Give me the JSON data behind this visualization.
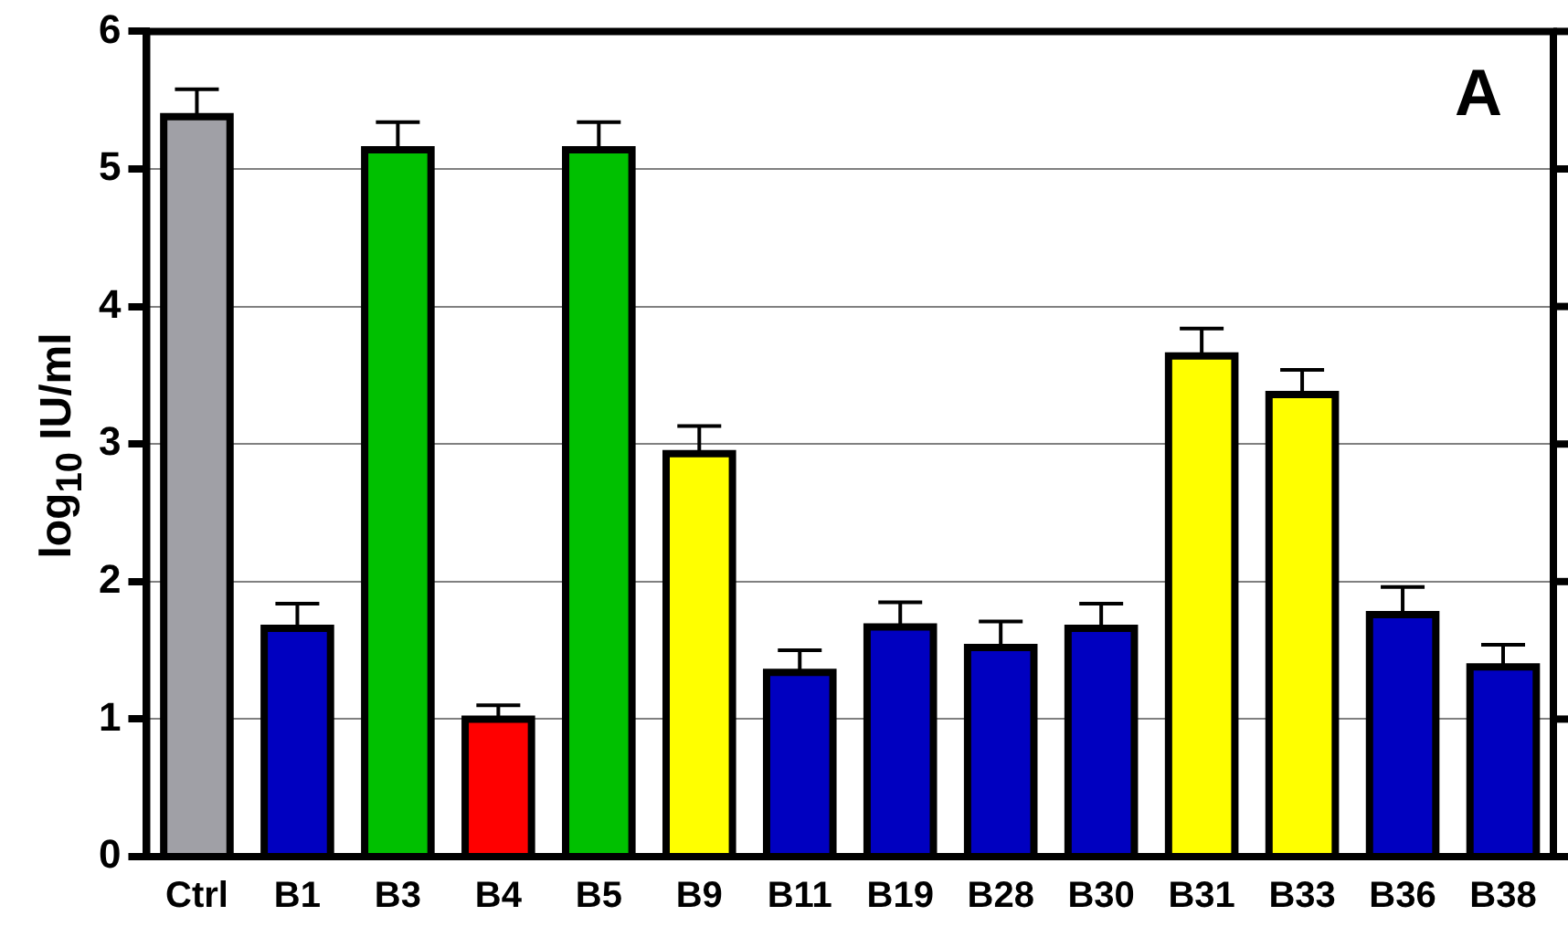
{
  "chart_data": {
    "type": "bar",
    "ylabel": "log$_{10}$ IU/ml",
    "annotations": [
      "A"
    ],
    "categories": [
      "Ctrl",
      "B1",
      "B3",
      "B4",
      "B5",
      "B9",
      "B11",
      "B19",
      "B28",
      "B30",
      "B31",
      "B33",
      "B36",
      "B38"
    ],
    "values": [
      5.38,
      1.66,
      5.14,
      1.0,
      5.14,
      2.93,
      1.34,
      1.67,
      1.52,
      1.66,
      3.64,
      3.36,
      1.76,
      1.38
    ],
    "colors": [
      "#a0a0a6",
      "#0000c0",
      "#00c000",
      "#ff0000",
      "#00c000",
      "#ffff00",
      "#0000c0",
      "#0000c0",
      "#0000c0",
      "#0000c0",
      "#ffff00",
      "#ffff00",
      "#0000c0",
      "#0000c0"
    ],
    "errors": [
      [
        5.38,
        5.58
      ],
      [
        1.66,
        1.84
      ],
      [
        5.14,
        5.34
      ],
      [
        1.0,
        1.1
      ],
      [
        5.14,
        5.34
      ],
      [
        2.93,
        3.13
      ],
      [
        1.34,
        1.5
      ],
      [
        1.67,
        1.85
      ],
      [
        1.52,
        1.71
      ],
      [
        1.66,
        1.84
      ],
      [
        3.64,
        3.84
      ],
      [
        3.36,
        3.54
      ],
      [
        1.76,
        1.96
      ],
      [
        1.38,
        1.54
      ]
    ],
    "ylim": [
      0,
      6
    ],
    "yticks": [
      0,
      1,
      2,
      3,
      4,
      5,
      6
    ],
    "grid": "y",
    "legend": false
  }
}
